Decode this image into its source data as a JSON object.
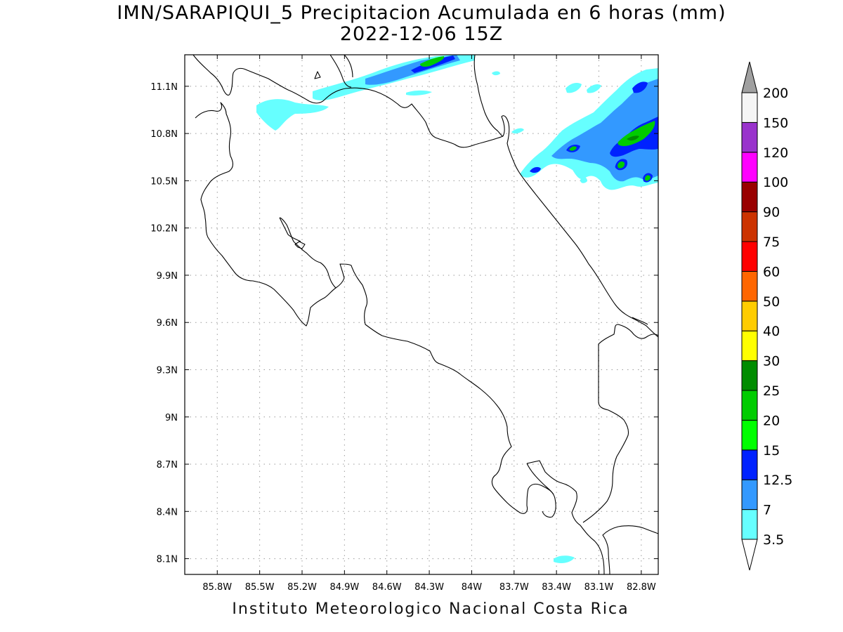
{
  "header": {
    "title_line1": "IMN/SARAPIQUI_5 Precipitacion Acumulada en 6 horas (mm)",
    "title_line2": "2022-12-06 15Z"
  },
  "footer": {
    "credit": "Instituto Meteorologico Nacional Costa Rica"
  },
  "map": {
    "lon_range": [
      -86.03,
      -82.68
    ],
    "lat_range": [
      8.0,
      11.3
    ],
    "lon_ticks": [
      {
        "value": -85.8,
        "label": "85.8W"
      },
      {
        "value": -85.5,
        "label": "85.5W"
      },
      {
        "value": -85.2,
        "label": "85.2W"
      },
      {
        "value": -84.9,
        "label": "84.9W"
      },
      {
        "value": -84.6,
        "label": "84.6W"
      },
      {
        "value": -84.3,
        "label": "84.3W"
      },
      {
        "value": -84.0,
        "label": "84W"
      },
      {
        "value": -83.7,
        "label": "83.7W"
      },
      {
        "value": -83.4,
        "label": "83.4W"
      },
      {
        "value": -83.1,
        "label": "83.1W"
      },
      {
        "value": -82.8,
        "label": "82.8W"
      }
    ],
    "lat_ticks": [
      {
        "value": 11.1,
        "label": "11.1N"
      },
      {
        "value": 10.8,
        "label": "10.8N"
      },
      {
        "value": 10.5,
        "label": "10.5N"
      },
      {
        "value": 10.2,
        "label": "10.2N"
      },
      {
        "value": 9.9,
        "label": "9.9N"
      },
      {
        "value": 9.6,
        "label": "9.6N"
      },
      {
        "value": 9.3,
        "label": "9.3N"
      },
      {
        "value": 9.0,
        "label": "9N"
      },
      {
        "value": 8.7,
        "label": "8.7N"
      },
      {
        "value": 8.4,
        "label": "8.4N"
      },
      {
        "value": 8.1,
        "label": "8.1N"
      }
    ],
    "gridlines": true,
    "coastline_color": "#000000"
  },
  "colorbar": {
    "orientation": "vertical",
    "placement": "right",
    "top_arrow_color": "#a0a0a0",
    "bottom_arrow_color": "#ffffff",
    "classes": [
      {
        "label": "3.5",
        "color": "#66ffff"
      },
      {
        "label": "7",
        "color": "#3399ff"
      },
      {
        "label": "12.5",
        "color": "#0022ff"
      },
      {
        "label": "15",
        "color": "#00ff00"
      },
      {
        "label": "20",
        "color": "#00cc00"
      },
      {
        "label": "25",
        "color": "#008c00"
      },
      {
        "label": "30",
        "color": "#ffff00"
      },
      {
        "label": "40",
        "color": "#ffcc00"
      },
      {
        "label": "50",
        "color": "#ff6600"
      },
      {
        "label": "60",
        "color": "#ff0000"
      },
      {
        "label": "75",
        "color": "#cc3300"
      },
      {
        "label": "90",
        "color": "#990000"
      },
      {
        "label": "100",
        "color": "#ff00ff"
      },
      {
        "label": "120",
        "color": "#9933cc"
      },
      {
        "label": "150",
        "color": "#f5f5f5"
      },
      {
        "label": "200",
        "color": "#a0a0a0"
      }
    ]
  }
}
